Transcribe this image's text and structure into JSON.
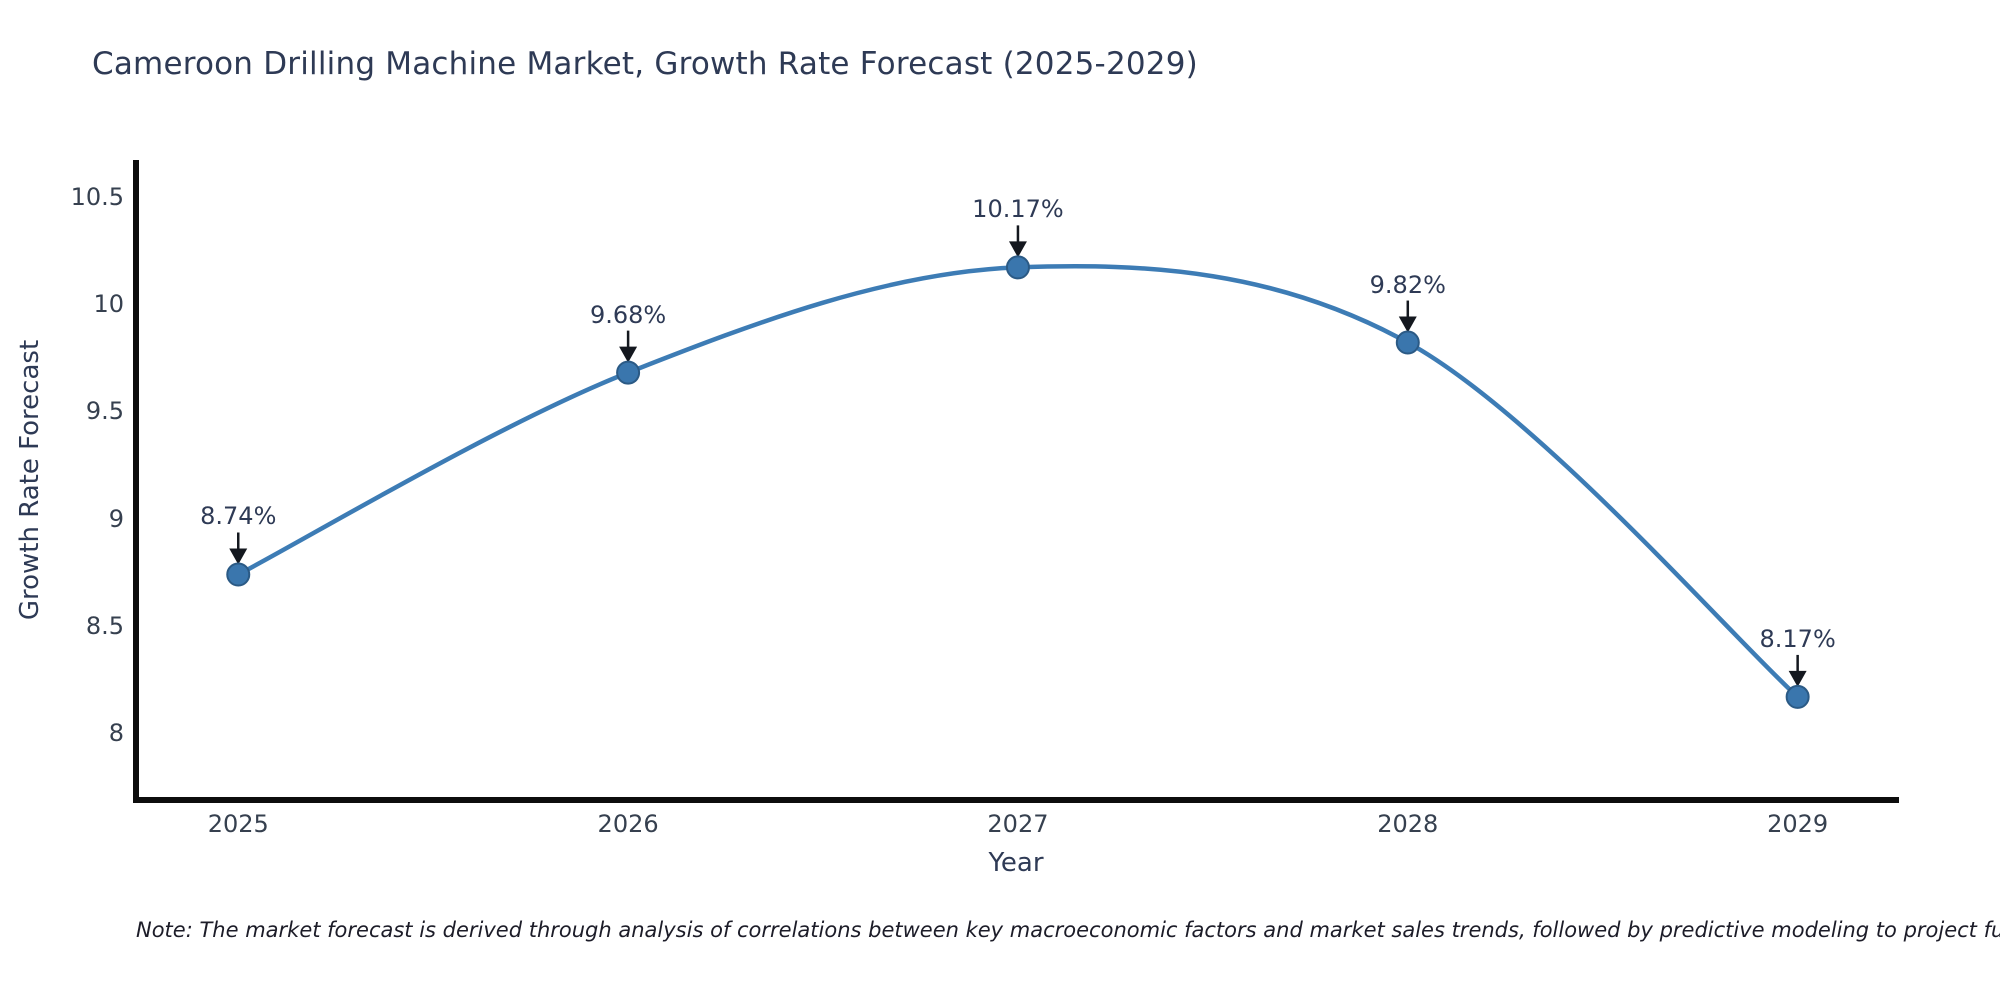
{
  "title": "Cameroon Drilling Machine Market, Growth Rate Forecast (2025-2029)",
  "footnote": "Note: The market forecast is derived through analysis of correlations between key macroeconomic factors and market sales trends, followed by predictive modeling to project future sales",
  "colors": {
    "line": "#3d7cb5",
    "marker_fill": "#3a76ad",
    "marker_edge": "#2b5a85",
    "axis_line": "#0d0d0d",
    "heading_text": "#2e3a55",
    "tick_text": "#36404f",
    "arrow": "#14181f",
    "background": "#ffffff"
  },
  "chart_data": {
    "type": "line",
    "title": "Cameroon Drilling Machine Market, Growth Rate Forecast (2025-2029)",
    "xlabel": "Year",
    "ylabel": "Growth Rate Forecast",
    "x": [
      2025,
      2026,
      2027,
      2028,
      2029
    ],
    "series": [
      {
        "name": "Growth Rate Forecast",
        "values": [
          8.74,
          9.68,
          10.17,
          9.82,
          8.17
        ]
      }
    ],
    "point_labels": [
      "8.74%",
      "9.68%",
      "10.17%",
      "9.82%",
      "8.17%"
    ],
    "xticks": [
      2025,
      2026,
      2027,
      2028,
      2029
    ],
    "xtick_labels": [
      "2025",
      "2026",
      "2027",
      "2028",
      "2029"
    ],
    "yticks": [
      8,
      8.5,
      9,
      9.5,
      10,
      10.5
    ],
    "ytick_labels": [
      "8",
      "8.5",
      "9",
      "9.5",
      "10",
      "10.5"
    ],
    "xlim": [
      2024.73,
      2029.26
    ],
    "ylim": [
      7.69,
      10.67
    ],
    "grid": false,
    "legend": "none",
    "line_shape": "spline",
    "markers": true,
    "annotation_arrows": "down"
  }
}
